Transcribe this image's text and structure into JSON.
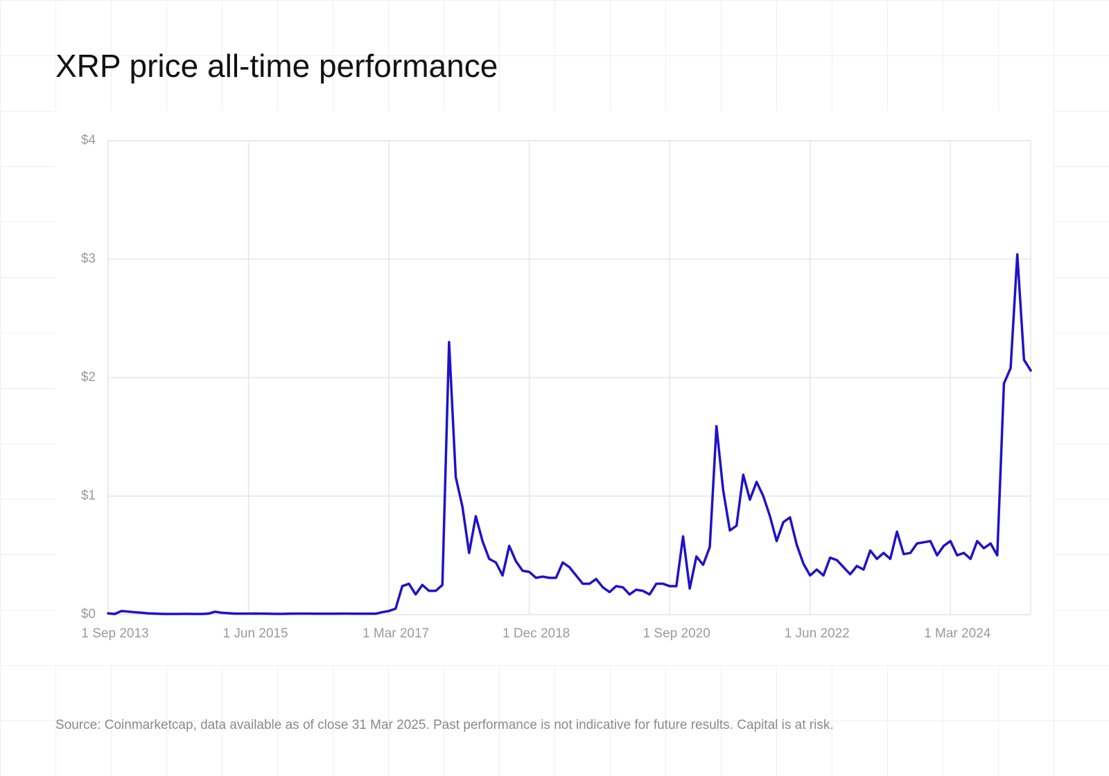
{
  "chart_data": {
    "type": "line",
    "title": "XRP price all-time performance",
    "note": "Source: Coinmarketcap, data available as of close 31 Mar 2025. Past performance is not indicative for future results. Capital is at risk.",
    "color": "#1f12c8",
    "grid": true,
    "categories": [
      "1 Sep 2013",
      null,
      null,
      null,
      null,
      null,
      null,
      null,
      null,
      null,
      null,
      null,
      null,
      null,
      null,
      null,
      null,
      null,
      null,
      null,
      null,
      "1 Jun 2015",
      null,
      null,
      null,
      null,
      null,
      null,
      null,
      null,
      null,
      null,
      null,
      null,
      null,
      null,
      null,
      null,
      null,
      null,
      null,
      null,
      "1 Mar 2017",
      null,
      null,
      null,
      null,
      null,
      null,
      null,
      null,
      null,
      null,
      null,
      null,
      null,
      null,
      null,
      null,
      null,
      null,
      null,
      null,
      "1 Dec 2018",
      null,
      null,
      null,
      null,
      null,
      null,
      null,
      null,
      null,
      null,
      null,
      null,
      null,
      null,
      null,
      null,
      null,
      null,
      null,
      null,
      "1 Sep 2020",
      null,
      null,
      null,
      null,
      null,
      null,
      null,
      null,
      null,
      null,
      null,
      null,
      null,
      null,
      null,
      null,
      null,
      null,
      null,
      null,
      "1 Jun 2022",
      null,
      null,
      null,
      null,
      null,
      null,
      null,
      null,
      null,
      null,
      null,
      null,
      null,
      null,
      null,
      null,
      null,
      null,
      null,
      null,
      "1 Mar 2024",
      null,
      null,
      null,
      null,
      null,
      null,
      null,
      null,
      null,
      null,
      null,
      null
    ],
    "values": [
      0.01,
      0.005,
      0.03,
      0.025,
      0.02,
      0.015,
      0.01,
      0.008,
      0.006,
      0.005,
      0.005,
      0.006,
      0.006,
      0.005,
      0.005,
      0.008,
      0.024,
      0.015,
      0.012,
      0.008,
      0.008,
      0.008,
      0.009,
      0.008,
      0.007,
      0.006,
      0.006,
      0.007,
      0.008,
      0.008,
      0.008,
      0.007,
      0.007,
      0.007,
      0.007,
      0.008,
      0.008,
      0.007,
      0.007,
      0.007,
      0.007,
      0.02,
      0.03,
      0.05,
      0.24,
      0.26,
      0.17,
      0.25,
      0.2,
      0.2,
      0.25,
      2.3,
      1.16,
      0.91,
      0.52,
      0.83,
      0.62,
      0.47,
      0.44,
      0.33,
      0.58,
      0.45,
      0.37,
      0.36,
      0.31,
      0.32,
      0.31,
      0.31,
      0.44,
      0.4,
      0.33,
      0.26,
      0.26,
      0.3,
      0.23,
      0.19,
      0.24,
      0.23,
      0.17,
      0.21,
      0.2,
      0.17,
      0.26,
      0.26,
      0.24,
      0.24,
      0.66,
      0.22,
      0.49,
      0.42,
      0.57,
      1.59,
      1.05,
      0.71,
      0.75,
      1.18,
      0.97,
      1.12,
      1.0,
      0.83,
      0.62,
      0.78,
      0.82,
      0.59,
      0.43,
      0.33,
      0.38,
      0.33,
      0.48,
      0.46,
      0.4,
      0.34,
      0.41,
      0.38,
      0.54,
      0.47,
      0.52,
      0.47,
      0.7,
      0.51,
      0.52,
      0.6,
      0.61,
      0.62,
      0.5,
      0.58,
      0.62,
      0.5,
      0.52,
      0.47,
      0.62,
      0.56,
      0.6,
      0.5,
      1.95,
      2.08,
      3.04,
      2.15,
      2.06
    ],
    "ylim": [
      0,
      4
    ],
    "yticks": [
      {
        "value": 0,
        "label": "$0"
      },
      {
        "value": 1,
        "label": "$1"
      },
      {
        "value": 2,
        "label": "$2"
      },
      {
        "value": 3,
        "label": "$3"
      },
      {
        "value": 4,
        "label": "$4"
      }
    ]
  }
}
